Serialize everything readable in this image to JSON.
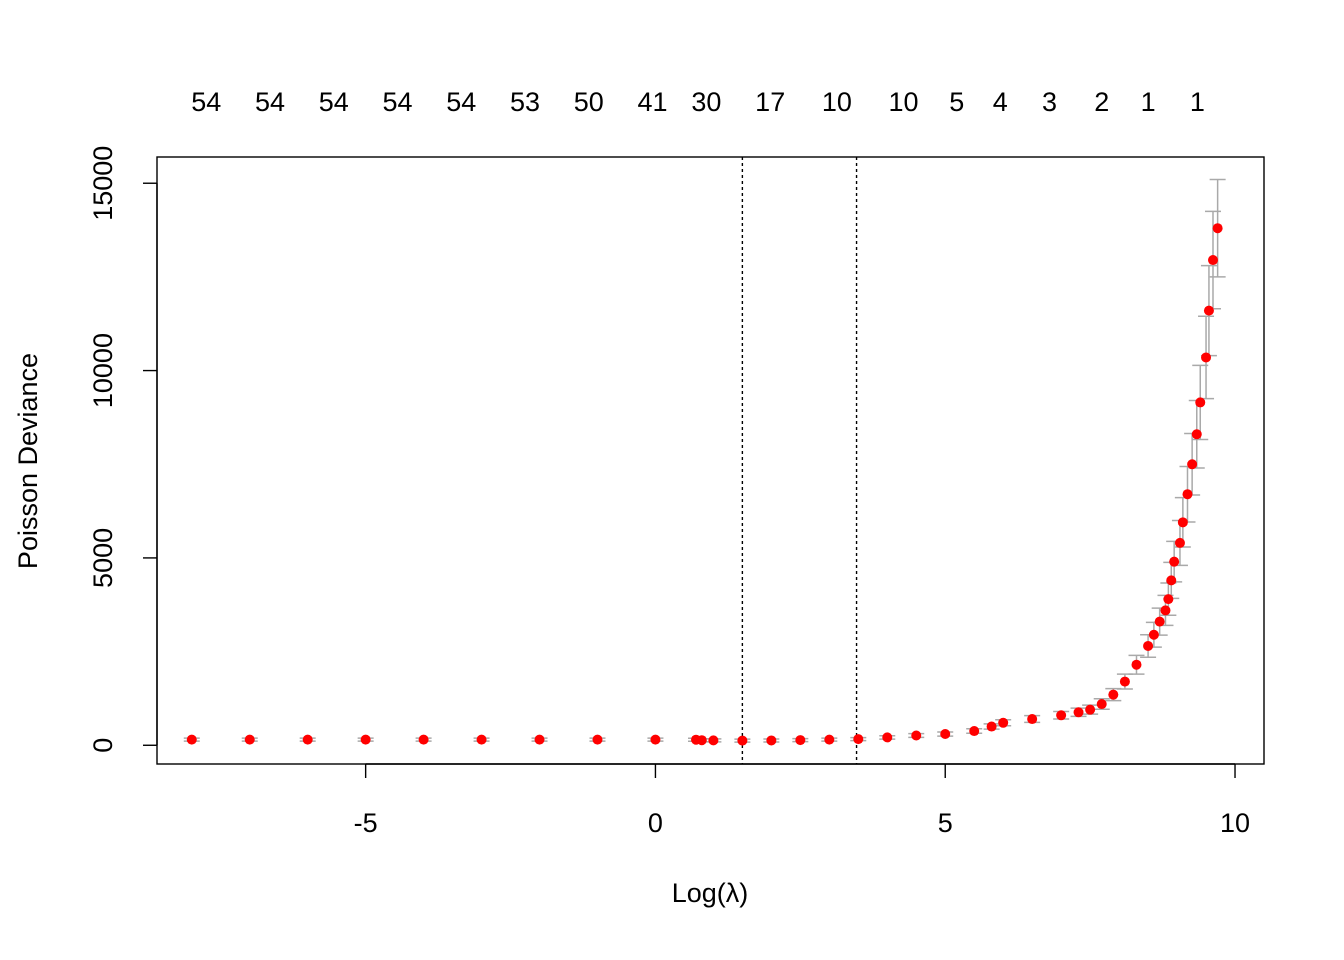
{
  "chart_data": {
    "type": "scatter",
    "title": "",
    "xlabel": "Log(λ)",
    "ylabel": "Poisson Deviance",
    "xlim": [
      -8.6,
      10.5
    ],
    "ylim": [
      -500,
      15700
    ],
    "x_ticks": [
      -5,
      0,
      5,
      10
    ],
    "x_tick_labels": [
      "-5",
      "0",
      "5",
      "10"
    ],
    "y_ticks": [
      0,
      5000,
      10000,
      15000
    ],
    "y_tick_labels": [
      "0",
      "5000",
      "10000",
      "15000"
    ],
    "top_axis_label_x": [
      -7.75,
      -6.65,
      -5.55,
      -4.45,
      -3.35,
      -2.25,
      -1.15,
      -0.05,
      0.88,
      1.98,
      3.13,
      4.28,
      5.2,
      5.95,
      6.8,
      7.7,
      8.5,
      9.35
    ],
    "top_axis_labels": [
      "54",
      "54",
      "54",
      "54",
      "54",
      "53",
      "50",
      "41",
      "30",
      "17",
      "10",
      "10",
      "5",
      "4",
      "3",
      "2",
      "1",
      "1"
    ],
    "vlines": [
      1.5,
      3.47
    ],
    "grid": false,
    "legend": "none",
    "colors": {
      "points": "#ff0000",
      "error_bars": "#a9a9a9",
      "vlines": "#000000",
      "axes": "#000000"
    },
    "series": [
      {
        "points": [
          [
            -8.0,
            150,
            40
          ],
          [
            -7.0,
            150,
            40
          ],
          [
            -6.0,
            150,
            40
          ],
          [
            -5.0,
            150,
            40
          ],
          [
            -4.0,
            150,
            40
          ],
          [
            -3.0,
            150,
            40
          ],
          [
            -2.0,
            150,
            40
          ],
          [
            -1.0,
            150,
            40
          ],
          [
            0.0,
            150,
            40
          ],
          [
            0.7,
            148,
            40
          ],
          [
            0.8,
            135,
            40
          ],
          [
            1.0,
            130,
            40
          ],
          [
            1.5,
            125,
            40
          ],
          [
            2.0,
            128,
            40
          ],
          [
            2.5,
            138,
            40
          ],
          [
            3.0,
            150,
            40
          ],
          [
            3.5,
            165,
            40
          ],
          [
            4.0,
            210,
            45
          ],
          [
            4.5,
            260,
            50
          ],
          [
            5.0,
            300,
            55
          ],
          [
            5.5,
            380,
            60
          ],
          [
            5.8,
            500,
            70
          ],
          [
            6.0,
            600,
            80
          ],
          [
            6.5,
            700,
            90
          ],
          [
            7.0,
            800,
            100
          ],
          [
            7.3,
            880,
            110
          ],
          [
            7.5,
            950,
            120
          ],
          [
            7.7,
            1100,
            140
          ],
          [
            7.9,
            1350,
            160
          ],
          [
            8.1,
            1700,
            200
          ],
          [
            8.3,
            2150,
            250
          ],
          [
            8.5,
            2650,
            300
          ],
          [
            8.6,
            2950,
            330
          ],
          [
            8.7,
            3300,
            360
          ],
          [
            8.8,
            3600,
            400
          ],
          [
            8.85,
            3900,
            430
          ],
          [
            8.9,
            4400,
            480
          ],
          [
            8.95,
            4900,
            540
          ],
          [
            9.05,
            5400,
            600
          ],
          [
            9.1,
            5950,
            660
          ],
          [
            9.18,
            6700,
            740
          ],
          [
            9.26,
            7500,
            820
          ],
          [
            9.34,
            8300,
            900
          ],
          [
            9.4,
            9150,
            990
          ],
          [
            9.5,
            10350,
            1100
          ],
          [
            9.55,
            11600,
            1200
          ],
          [
            9.62,
            12950,
            1300
          ],
          [
            9.7,
            13800,
            1300
          ]
        ]
      }
    ]
  }
}
